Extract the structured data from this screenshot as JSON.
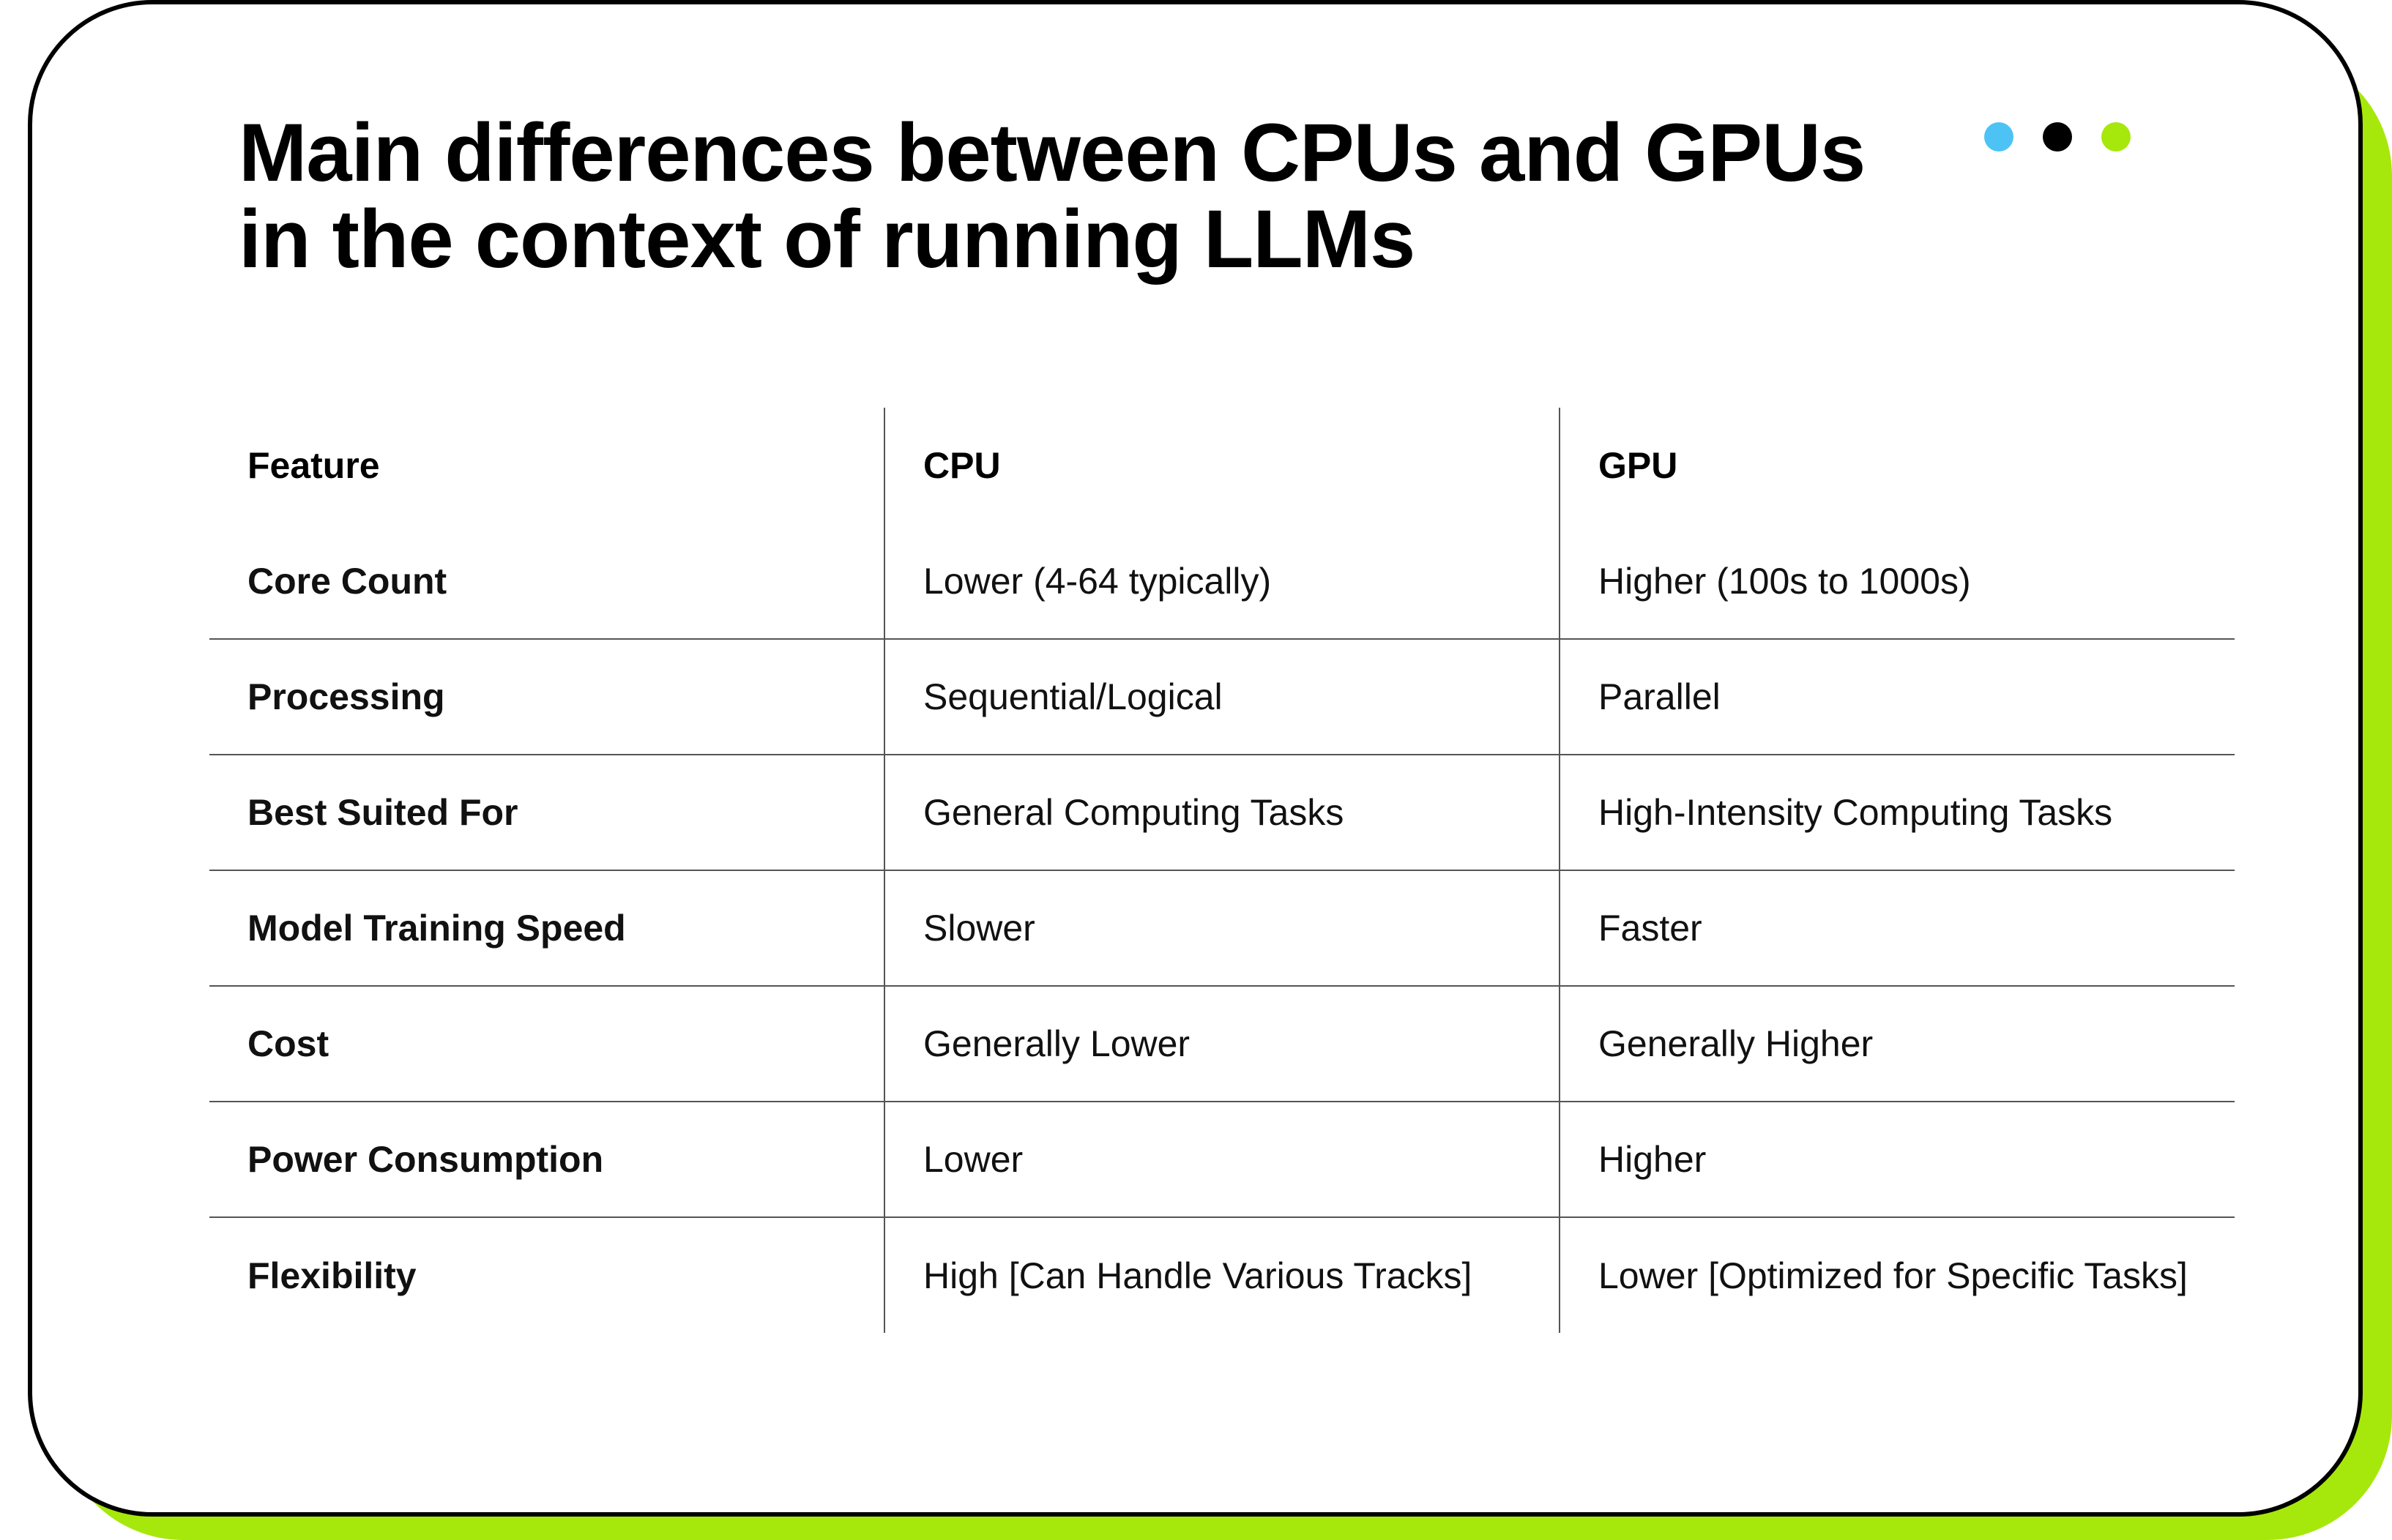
{
  "title": {
    "line1": "Main differences between CPUs and GPUs",
    "line2": "in the context of running LLMs"
  },
  "colors": {
    "accent_green": "#a6e80b",
    "dot_blue": "#4dc3f5",
    "dot_black": "#000000",
    "dot_green": "#a6e80b"
  },
  "table": {
    "headers": [
      "Feature",
      "CPU",
      "GPU"
    ],
    "rows": [
      [
        "Core Count",
        "Lower (4-64 typically)",
        "Higher (100s to 1000s)"
      ],
      [
        "Processing",
        "Sequential/Logical",
        "Parallel"
      ],
      [
        "Best Suited For",
        "General Computing Tasks",
        "High-Intensity Computing Tasks"
      ],
      [
        "Model Training Speed",
        "Slower",
        "Faster"
      ],
      [
        "Cost",
        "Generally Lower",
        "Generally Higher"
      ],
      [
        "Power Consumption",
        "Lower",
        "Higher"
      ],
      [
        "Flexibility",
        "High [Can Handle Various Tracks]",
        "Lower [Optimized for Specific Tasks]"
      ]
    ]
  }
}
